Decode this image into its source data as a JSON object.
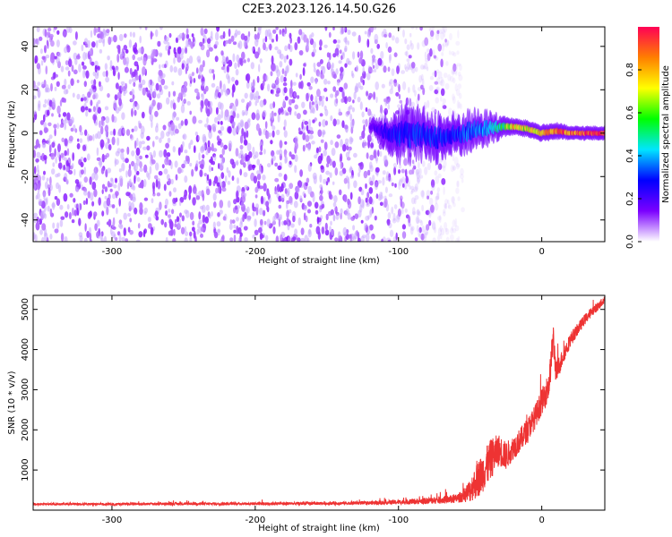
{
  "title": "C2E3.2023.126.14.50.G26",
  "chart_data": [
    {
      "type": "heatmap",
      "xlabel": "Height of straight line (km)",
      "ylabel": "Frequency (Hz)",
      "xlim": [
        -355,
        44
      ],
      "ylim": [
        -50,
        49
      ],
      "x_ticks": [
        -300,
        -200,
        -100,
        0
      ],
      "y_ticks": [
        -40,
        -20,
        0,
        20,
        40
      ],
      "colorbar": {
        "label": "Normalized spectral amplitude",
        "range": [
          0.0,
          1.0
        ],
        "ticks": [
          0.0,
          0.2,
          0.4,
          0.6,
          0.8
        ],
        "colormap": [
          "#ffffff",
          "#7b00ff",
          "#0000ff",
          "#00e5ff",
          "#00ff00",
          "#ffff00",
          "#ff7f00",
          "#ff0055"
        ]
      },
      "noise_region": {
        "x_from": -355,
        "x_to": -55,
        "level": 0.1
      },
      "signal_trace": [
        {
          "x": -120,
          "y": 3,
          "width": 2,
          "level": 0.15
        },
        {
          "x": -110,
          "y": 1,
          "width": 5,
          "level": 0.25
        },
        {
          "x": -100,
          "y": 0,
          "width": 8,
          "level": 0.3
        },
        {
          "x": -90,
          "y": -1,
          "width": 8,
          "level": 0.3
        },
        {
          "x": -80,
          "y": -1,
          "width": 7,
          "level": 0.3
        },
        {
          "x": -70,
          "y": -2,
          "width": 7,
          "level": 0.3
        },
        {
          "x": -60,
          "y": -1,
          "width": 6,
          "level": 0.3
        },
        {
          "x": -50,
          "y": 1,
          "width": 6,
          "level": 0.35
        },
        {
          "x": -40,
          "y": 2,
          "width": 5,
          "level": 0.4
        },
        {
          "x": -30,
          "y": 3,
          "width": 4,
          "level": 0.5
        },
        {
          "x": -20,
          "y": 3,
          "width": 3,
          "level": 0.75
        },
        {
          "x": -10,
          "y": 2,
          "width": 3,
          "level": 0.7
        },
        {
          "x": 0,
          "y": 0,
          "width": 3,
          "level": 0.85
        },
        {
          "x": 10,
          "y": 1,
          "width": 3,
          "level": 0.9
        },
        {
          "x": 20,
          "y": 0,
          "width": 2.5,
          "level": 0.9
        },
        {
          "x": 30,
          "y": 0,
          "width": 2.5,
          "level": 0.92
        },
        {
          "x": 44,
          "y": 0,
          "width": 2.5,
          "level": 0.92
        }
      ]
    },
    {
      "type": "line",
      "xlabel": "Height of straight line (km)",
      "ylabel": "SNR (10 * v/v)",
      "xlim": [
        -355,
        44
      ],
      "ylim": [
        0,
        5350
      ],
      "x_ticks": [
        -300,
        -200,
        -100,
        0
      ],
      "y_ticks": [
        1000,
        2000,
        3000,
        4000,
        5000
      ],
      "color": "#ee3333",
      "series": [
        {
          "x": [
            -355,
            -300,
            -250,
            -200,
            -150,
            -120,
            -100,
            -80,
            -60,
            -55,
            -50,
            -45,
            -40,
            -35,
            -30,
            -25,
            -20,
            -15,
            -10,
            -5,
            0,
            5,
            8,
            10,
            15,
            20,
            25,
            30,
            35,
            40,
            44
          ],
          "values": [
            150,
            150,
            160,
            160,
            170,
            180,
            200,
            230,
            280,
            350,
            500,
            750,
            1000,
            1300,
            1500,
            1350,
            1550,
            1750,
            2000,
            2300,
            2700,
            3100,
            4300,
            3400,
            3850,
            4250,
            4500,
            4750,
            4950,
            5100,
            5250
          ],
          "noise": [
            30,
            30,
            35,
            35,
            40,
            45,
            60,
            80,
            110,
            150,
            300,
            450,
            500,
            500,
            400,
            350,
            300,
            300,
            300,
            300,
            320,
            350,
            400,
            300,
            200,
            180,
            150,
            130,
            120,
            110,
            100
          ]
        }
      ]
    }
  ]
}
